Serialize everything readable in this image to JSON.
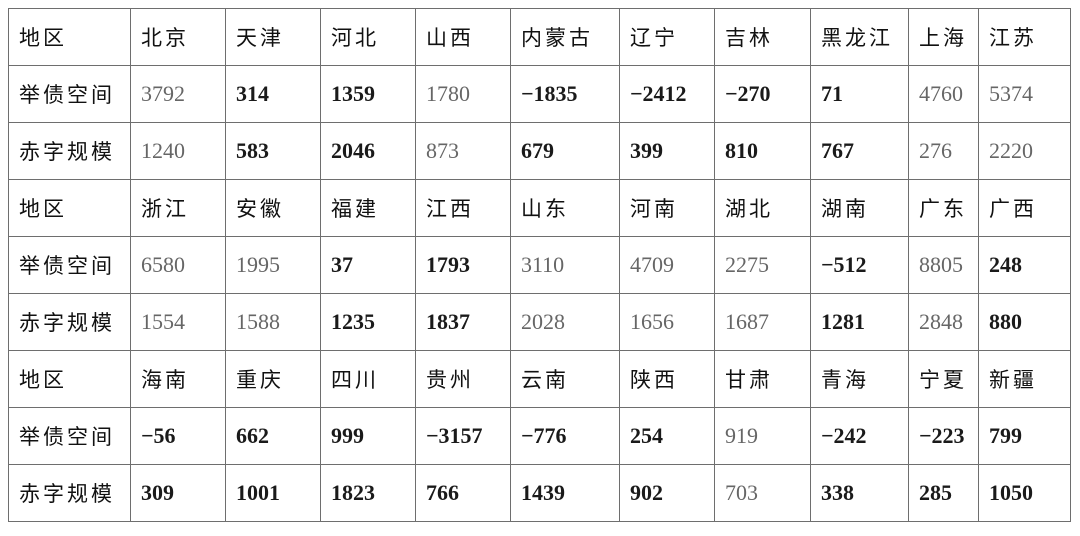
{
  "table": {
    "rows": [
      {
        "label": "地区",
        "cells": [
          "北京",
          "天津",
          "河北",
          "山西",
          "内蒙古",
          "辽宁",
          "吉林",
          "黑龙江",
          "上海",
          "江苏"
        ]
      },
      {
        "label": "举债空间",
        "cells": [
          "3792",
          "314",
          "1359",
          "1780",
          "−1835",
          "−2412",
          "−270",
          "71",
          "4760",
          "5374"
        ]
      },
      {
        "label": "赤字规模",
        "cells": [
          "1240",
          "583",
          "2046",
          "873",
          "679",
          "399",
          "810",
          "767",
          "276",
          "2220"
        ]
      },
      {
        "label": "地区",
        "cells": [
          "浙江",
          "安徽",
          "福建",
          "江西",
          "山东",
          "河南",
          "湖北",
          "湖南",
          "广东",
          "广西"
        ]
      },
      {
        "label": "举债空间",
        "cells": [
          "6580",
          "1995",
          "37",
          "1793",
          "3110",
          "4709",
          "2275",
          "−512",
          "8805",
          "248"
        ]
      },
      {
        "label": "赤字规模",
        "cells": [
          "1554",
          "1588",
          "1235",
          "1837",
          "2028",
          "1656",
          "1687",
          "1281",
          "2848",
          "880"
        ]
      },
      {
        "label": "地区",
        "cells": [
          "海南",
          "重庆",
          "四川",
          "贵州",
          "云南",
          "陕西",
          "甘肃",
          "青海",
          "宁夏",
          "新疆"
        ]
      },
      {
        "label": "举债空间",
        "cells": [
          "−56",
          "662",
          "999",
          "−3157",
          "−776",
          "254",
          "919",
          "−242",
          "−223",
          "799"
        ]
      },
      {
        "label": "赤字规模",
        "cells": [
          "309",
          "1001",
          "1823",
          "766",
          "1439",
          "902",
          "703",
          "338",
          "285",
          "1050"
        ]
      }
    ]
  }
}
